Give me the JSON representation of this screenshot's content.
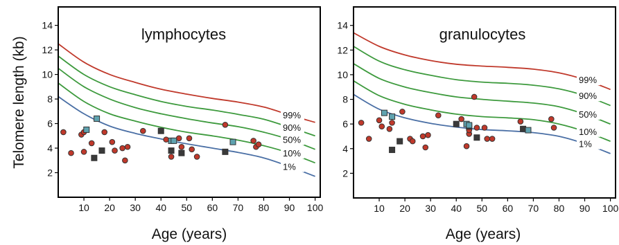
{
  "figure": {
    "ylabel": "Telomere length (kb)"
  },
  "chart_data": [
    {
      "type": "scatter",
      "title": "lymphocytes",
      "xlabel": "Age (years)",
      "ylabel": "Telomere length (kb)",
      "xlim": [
        0,
        102
      ],
      "ylim": [
        0,
        15.5
      ],
      "xticks": [
        10,
        20,
        30,
        40,
        50,
        60,
        70,
        80,
        90,
        100
      ],
      "yticks": [
        2,
        4,
        6,
        8,
        10,
        12,
        14
      ],
      "grid": false,
      "percentile_curves": [
        {
          "name": "99%",
          "color": "#c0392b",
          "x": [
            0,
            10,
            20,
            30,
            40,
            50,
            60,
            70,
            80,
            90,
            100
          ],
          "y": [
            12.5,
            11.0,
            10.0,
            9.35,
            8.8,
            8.4,
            8.05,
            7.75,
            7.35,
            6.7,
            6.1
          ]
        },
        {
          "name": "90%",
          "color": "#3d9a3d",
          "x": [
            0,
            10,
            20,
            30,
            40,
            50,
            60,
            70,
            80,
            90,
            100
          ],
          "y": [
            11.5,
            10.0,
            9.0,
            8.35,
            7.8,
            7.4,
            7.1,
            6.75,
            6.35,
            5.7,
            5.0
          ]
        },
        {
          "name": "50%",
          "color": "#3d9a3d",
          "x": [
            0,
            10,
            20,
            30,
            40,
            50,
            60,
            70,
            80,
            90,
            100
          ],
          "y": [
            10.5,
            9.0,
            8.0,
            7.3,
            6.8,
            6.4,
            6.05,
            5.75,
            5.3,
            4.7,
            3.9
          ]
        },
        {
          "name": "10%",
          "color": "#3d9a3d",
          "x": [
            0,
            10,
            20,
            30,
            40,
            50,
            60,
            70,
            80,
            90,
            100
          ],
          "y": [
            9.3,
            7.8,
            6.8,
            6.2,
            5.7,
            5.3,
            5.0,
            4.65,
            4.2,
            3.6,
            2.8
          ]
        },
        {
          "name": "1%",
          "color": "#4a6fa5",
          "x": [
            0,
            10,
            20,
            30,
            40,
            50,
            60,
            70,
            80,
            90,
            100
          ],
          "y": [
            8.2,
            6.8,
            5.8,
            5.2,
            4.75,
            4.35,
            4.0,
            3.65,
            3.2,
            2.5,
            1.7
          ]
        }
      ],
      "series": [
        {
          "name": "circles",
          "marker": "circle",
          "color": "#c0392b",
          "points": [
            [
              2,
              5.3
            ],
            [
              5,
              3.6
            ],
            [
              9,
              5.1
            ],
            [
              10,
              3.7
            ],
            [
              10,
              5.3
            ],
            [
              13,
              4.4
            ],
            [
              18,
              5.3
            ],
            [
              21,
              4.5
            ],
            [
              22,
              3.8
            ],
            [
              25,
              4.0
            ],
            [
              26,
              3.0
            ],
            [
              27,
              4.1
            ],
            [
              33,
              5.4
            ],
            [
              42,
              4.7
            ],
            [
              44,
              3.3
            ],
            [
              47,
              4.8
            ],
            [
              48,
              4.1
            ],
            [
              51,
              4.8
            ],
            [
              52,
              3.9
            ],
            [
              54,
              3.3
            ],
            [
              65,
              5.9
            ],
            [
              76,
              4.6
            ],
            [
              77,
              4.1
            ],
            [
              78,
              4.3
            ]
          ]
        },
        {
          "name": "dark squares",
          "marker": "square",
          "color": "#3a3a3a",
          "points": [
            [
              14,
              3.2
            ],
            [
              17,
              3.8
            ],
            [
              40,
              5.4
            ],
            [
              44,
              3.8
            ],
            [
              48,
              3.6
            ],
            [
              65,
              3.7
            ]
          ]
        },
        {
          "name": "light squares",
          "marker": "square",
          "color": "#5fa3b0",
          "points": [
            [
              11,
              5.5
            ],
            [
              15,
              6.4
            ],
            [
              44,
              4.6
            ],
            [
              45,
              4.6
            ],
            [
              68,
              4.5
            ]
          ]
        }
      ]
    },
    {
      "type": "scatter",
      "title": "granulocytes",
      "xlabel": "Age (years)",
      "ylabel": "",
      "xlim": [
        0,
        102
      ],
      "ylim": [
        0,
        15.5
      ],
      "xticks": [
        10,
        20,
        30,
        40,
        50,
        60,
        70,
        80,
        90,
        100
      ],
      "yticks": [
        2,
        4,
        6,
        8,
        10,
        12,
        14
      ],
      "grid": false,
      "percentile_curves": [
        {
          "name": "99%",
          "color": "#c0392b",
          "x": [
            0,
            10,
            20,
            30,
            40,
            50,
            60,
            70,
            80,
            90,
            100
          ],
          "y": [
            13.4,
            12.3,
            11.6,
            11.15,
            10.85,
            10.7,
            10.6,
            10.45,
            10.15,
            9.6,
            8.8
          ]
        },
        {
          "name": "90%",
          "color": "#3d9a3d",
          "x": [
            0,
            10,
            20,
            30,
            40,
            50,
            60,
            70,
            80,
            90,
            100
          ],
          "y": [
            12.3,
            11.1,
            10.4,
            9.95,
            9.6,
            9.4,
            9.3,
            9.15,
            8.85,
            8.3,
            7.5
          ]
        },
        {
          "name": "50%",
          "color": "#3d9a3d",
          "x": [
            0,
            10,
            20,
            30,
            40,
            50,
            60,
            70,
            80,
            90,
            100
          ],
          "y": [
            10.9,
            9.7,
            9.0,
            8.55,
            8.2,
            8.0,
            7.85,
            7.7,
            7.4,
            6.8,
            6.0
          ]
        },
        {
          "name": "10%",
          "color": "#3d9a3d",
          "x": [
            0,
            10,
            20,
            30,
            40,
            50,
            60,
            70,
            80,
            90,
            100
          ],
          "y": [
            9.5,
            8.3,
            7.6,
            7.15,
            6.8,
            6.6,
            6.5,
            6.35,
            6.0,
            5.4,
            4.6
          ]
        },
        {
          "name": "1%",
          "color": "#4a6fa5",
          "x": [
            0,
            10,
            20,
            30,
            40,
            50,
            60,
            70,
            80,
            90,
            100
          ],
          "y": [
            8.4,
            7.2,
            6.5,
            6.05,
            5.75,
            5.55,
            5.45,
            5.3,
            5.0,
            4.4,
            3.6
          ]
        }
      ],
      "series": [
        {
          "name": "circles",
          "marker": "circle",
          "color": "#c0392b",
          "points": [
            [
              3,
              6.1
            ],
            [
              6,
              4.8
            ],
            [
              10,
              6.3
            ],
            [
              11,
              5.8
            ],
            [
              14,
              5.6
            ],
            [
              15,
              6.1
            ],
            [
              19,
              7.0
            ],
            [
              22,
              4.8
            ],
            [
              23,
              4.6
            ],
            [
              27,
              5.0
            ],
            [
              28,
              4.1
            ],
            [
              29,
              5.1
            ],
            [
              33,
              6.7
            ],
            [
              42,
              6.4
            ],
            [
              44,
              4.2
            ],
            [
              45,
              5.2
            ],
            [
              45,
              5.5
            ],
            [
              47,
              8.2
            ],
            [
              48,
              5.7
            ],
            [
              51,
              5.7
            ],
            [
              52,
              4.8
            ],
            [
              54,
              4.8
            ],
            [
              65,
              6.2
            ],
            [
              77,
              6.4
            ],
            [
              78,
              5.7
            ]
          ]
        },
        {
          "name": "dark squares",
          "marker": "square",
          "color": "#3a3a3a",
          "points": [
            [
              15,
              3.9
            ],
            [
              18,
              4.6
            ],
            [
              40,
              6.0
            ],
            [
              45,
              5.8
            ],
            [
              48,
              4.9
            ],
            [
              66,
              5.6
            ]
          ]
        },
        {
          "name": "light squares",
          "marker": "square",
          "color": "#5fa3b0",
          "points": [
            [
              12,
              6.9
            ],
            [
              15,
              6.6
            ],
            [
              44,
              6.0
            ],
            [
              45,
              5.9
            ],
            [
              68,
              5.5
            ]
          ]
        }
      ]
    }
  ]
}
